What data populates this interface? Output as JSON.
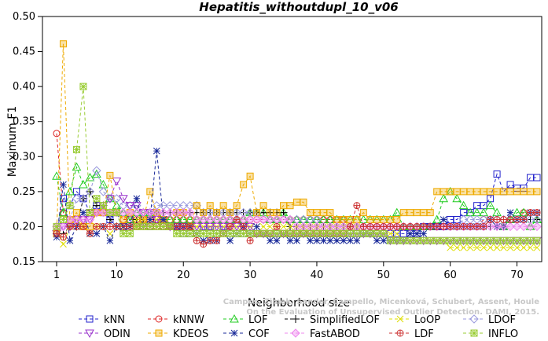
{
  "chart_data": {
    "type": "line",
    "title": "Hepatitis_withoutdupl_10_v06",
    "xlabel": "Neighborhood size",
    "ylabel": "Maximum F1",
    "xlim": [
      1,
      73
    ],
    "ylim": [
      0.15,
      0.5
    ],
    "xticks": [
      1,
      10,
      20,
      30,
      40,
      50,
      60,
      70
    ],
    "yticks": [
      0.15,
      0.2,
      0.25,
      0.3,
      0.35,
      0.4,
      0.45,
      0.5
    ],
    "grid": false,
    "legend_position": "bottom",
    "watermark": [
      "Campos, Zimek, Sander, Campello, Micenková, Schubert, Assent, Houle",
      "On the Evaluation of Unsupervised Outlier Detection. DAMI, 2015."
    ],
    "series": [
      {
        "name": "kNN",
        "color": "#2222cc",
        "marker": "square",
        "values": [
          0.19,
          0.24,
          0.23,
          0.25,
          0.24,
          0.22,
          0.23,
          0.22,
          0.21,
          0.22,
          0.2,
          0.21,
          0.2,
          0.21,
          0.2,
          0.21,
          0.2,
          0.2,
          0.2,
          0.19,
          0.19,
          0.19,
          0.2,
          0.2,
          0.19,
          0.2,
          0.19,
          0.19,
          0.19,
          0.19,
          0.19,
          0.19,
          0.19,
          0.19,
          0.19,
          0.19,
          0.19,
          0.19,
          0.19,
          0.19,
          0.19,
          0.19,
          0.19,
          0.19,
          0.19,
          0.19,
          0.19,
          0.19,
          0.19,
          0.19,
          0.19,
          0.19,
          0.19,
          0.19,
          0.19,
          0.2,
          0.2,
          0.2,
          0.2,
          0.21,
          0.21,
          0.22,
          0.22,
          0.23,
          0.23,
          0.24,
          0.275,
          0.25,
          0.26,
          0.255,
          0.255,
          0.27,
          0.27
        ]
      },
      {
        "name": "kNNW",
        "color": "#dd2222",
        "marker": "circle",
        "values": [
          0.333,
          0.22,
          0.21,
          0.21,
          0.21,
          0.22,
          0.22,
          0.22,
          0.22,
          0.22,
          0.21,
          0.21,
          0.21,
          0.21,
          0.21,
          0.21,
          0.21,
          0.21,
          0.21,
          0.21,
          0.21,
          0.21,
          0.21,
          0.21,
          0.21,
          0.21,
          0.21,
          0.21,
          0.21,
          0.21,
          0.21,
          0.21,
          0.21,
          0.21,
          0.21,
          0.21,
          0.21,
          0.21,
          0.21,
          0.21,
          0.21,
          0.21,
          0.21,
          0.21,
          0.2,
          0.2,
          0.2,
          0.2,
          0.2,
          0.2,
          0.2,
          0.2,
          0.2,
          0.2,
          0.2,
          0.2,
          0.2,
          0.2,
          0.2,
          0.2,
          0.2,
          0.2,
          0.2,
          0.2,
          0.21,
          0.21,
          0.21,
          0.21,
          0.21,
          0.21,
          0.22,
          0.22,
          0.22
        ]
      },
      {
        "name": "LOF",
        "color": "#22cc22",
        "marker": "triangle-up",
        "values": [
          0.272,
          0.22,
          0.25,
          0.285,
          0.26,
          0.27,
          0.275,
          0.26,
          0.24,
          0.23,
          0.22,
          0.21,
          0.22,
          0.22,
          0.22,
          0.22,
          0.21,
          0.21,
          0.21,
          0.21,
          0.21,
          0.21,
          0.21,
          0.21,
          0.21,
          0.21,
          0.21,
          0.21,
          0.21,
          0.22,
          0.22,
          0.22,
          0.21,
          0.21,
          0.22,
          0.21,
          0.21,
          0.21,
          0.21,
          0.21,
          0.21,
          0.21,
          0.21,
          0.21,
          0.21,
          0.21,
          0.21,
          0.21,
          0.21,
          0.21,
          0.21,
          0.22,
          0.2,
          0.2,
          0.2,
          0.2,
          0.2,
          0.21,
          0.24,
          0.25,
          0.24,
          0.23,
          0.22,
          0.22,
          0.22,
          0.23,
          0.22,
          0.2,
          0.21,
          0.22,
          0.22,
          0.2,
          0.21
        ]
      },
      {
        "name": "SimplifiedLOF",
        "color": "#000000",
        "marker": "plus",
        "values": [
          0.19,
          0.19,
          0.2,
          0.2,
          0.24,
          0.25,
          0.23,
          0.23,
          0.21,
          0.2,
          0.2,
          0.2,
          0.21,
          0.21,
          0.21,
          0.22,
          0.22,
          0.22,
          0.22,
          0.22,
          0.22,
          0.22,
          0.22,
          0.22,
          0.22,
          0.22,
          0.22,
          0.22,
          0.22,
          0.22,
          0.22,
          0.22,
          0.22,
          0.22,
          0.22,
          0.2,
          0.2,
          0.2,
          0.2,
          0.2,
          0.2,
          0.2,
          0.2,
          0.2,
          0.2,
          0.2,
          0.2,
          0.2,
          0.2,
          0.2,
          0.2,
          0.2,
          0.2,
          0.2,
          0.2,
          0.2,
          0.2,
          0.2,
          0.2,
          0.2,
          0.2,
          0.2,
          0.2,
          0.2,
          0.2,
          0.2,
          0.2,
          0.2,
          0.21,
          0.21,
          0.21,
          0.21,
          0.21
        ]
      },
      {
        "name": "LoOP",
        "color": "#dddd00",
        "marker": "x",
        "values": [
          0.2,
          0.175,
          0.2,
          0.21,
          0.2,
          0.19,
          0.2,
          0.2,
          0.19,
          0.2,
          0.2,
          0.2,
          0.21,
          0.21,
          0.21,
          0.21,
          0.21,
          0.2,
          0.2,
          0.2,
          0.2,
          0.2,
          0.2,
          0.2,
          0.2,
          0.2,
          0.2,
          0.2,
          0.2,
          0.2,
          0.2,
          0.2,
          0.2,
          0.2,
          0.2,
          0.2,
          0.2,
          0.2,
          0.2,
          0.2,
          0.2,
          0.2,
          0.2,
          0.2,
          0.2,
          0.2,
          0.19,
          0.19,
          0.19,
          0.19,
          0.19,
          0.19,
          0.18,
          0.18,
          0.18,
          0.18,
          0.18,
          0.18,
          0.18,
          0.17,
          0.17,
          0.17,
          0.17,
          0.17,
          0.17,
          0.17,
          0.17,
          0.17,
          0.17,
          0.17,
          0.17,
          0.17,
          0.17
        ]
      },
      {
        "name": "LDOF",
        "color": "#9999dd",
        "marker": "diamond",
        "values": [
          0.2,
          0.2,
          0.21,
          0.24,
          0.24,
          0.25,
          0.28,
          0.25,
          0.24,
          0.24,
          0.23,
          0.23,
          0.23,
          0.22,
          0.22,
          0.23,
          0.23,
          0.23,
          0.23,
          0.23,
          0.23,
          0.23,
          0.22,
          0.22,
          0.22,
          0.22,
          0.22,
          0.22,
          0.22,
          0.22,
          0.22,
          0.21,
          0.21,
          0.21,
          0.21,
          0.21,
          0.21,
          0.21,
          0.21,
          0.21,
          0.2,
          0.2,
          0.2,
          0.2,
          0.2,
          0.2,
          0.2,
          0.2,
          0.2,
          0.2,
          0.2,
          0.2,
          0.2,
          0.2,
          0.2,
          0.2,
          0.2,
          0.2,
          0.2,
          0.2,
          0.2,
          0.21,
          0.21,
          0.21,
          0.21,
          0.21,
          0.21,
          0.21,
          0.21,
          0.21,
          0.21,
          0.21,
          0.21
        ]
      },
      {
        "name": "ODIN",
        "color": "#9933cc",
        "marker": "triangle-down",
        "values": [
          0.19,
          0.2,
          0.2,
          0.21,
          0.21,
          0.21,
          0.22,
          0.23,
          0.24,
          0.265,
          0.24,
          0.23,
          0.23,
          0.22,
          0.22,
          0.21,
          0.21,
          0.2,
          0.2,
          0.2,
          0.2,
          0.2,
          0.2,
          0.2,
          0.2,
          0.2,
          0.2,
          0.2,
          0.2,
          0.2,
          0.19,
          0.19,
          0.19,
          0.19,
          0.19,
          0.19,
          0.19,
          0.19,
          0.19,
          0.19,
          0.19,
          0.19,
          0.19,
          0.19,
          0.19,
          0.19,
          0.19,
          0.19,
          0.19,
          0.19,
          0.18,
          0.18,
          0.18,
          0.18,
          0.18,
          0.18,
          0.18,
          0.18,
          0.18,
          0.18,
          0.18,
          0.18,
          0.18,
          0.18,
          0.18,
          0.18,
          0.18,
          0.18,
          0.18,
          0.18,
          0.18,
          0.18,
          0.18
        ]
      },
      {
        "name": "KDEOS",
        "color": "#eeaa00",
        "marker": "square-filled",
        "values": [
          0.19,
          0.461,
          0.21,
          0.22,
          0.2,
          0.2,
          0.22,
          0.22,
          0.273,
          0.22,
          0.21,
          0.22,
          0.2,
          0.21,
          0.25,
          0.22,
          0.21,
          0.2,
          0.22,
          0.22,
          0.2,
          0.23,
          0.22,
          0.23,
          0.22,
          0.23,
          0.22,
          0.23,
          0.26,
          0.272,
          0.22,
          0.23,
          0.22,
          0.22,
          0.23,
          0.23,
          0.235,
          0.235,
          0.22,
          0.22,
          0.22,
          0.22,
          0.21,
          0.21,
          0.21,
          0.21,
          0.22,
          0.21,
          0.21,
          0.21,
          0.21,
          0.21,
          0.22,
          0.22,
          0.22,
          0.22,
          0.22,
          0.25,
          0.25,
          0.25,
          0.25,
          0.25,
          0.25,
          0.25,
          0.25,
          0.25,
          0.25,
          0.25,
          0.25,
          0.25,
          0.25,
          0.25,
          0.25
        ]
      },
      {
        "name": "COF",
        "color": "#1a2a99",
        "marker": "star",
        "values": [
          0.185,
          0.26,
          0.18,
          0.2,
          0.22,
          0.19,
          0.19,
          0.2,
          0.18,
          0.2,
          0.2,
          0.2,
          0.24,
          0.2,
          0.21,
          0.308,
          0.21,
          0.2,
          0.2,
          0.2,
          0.2,
          0.19,
          0.18,
          0.18,
          0.18,
          0.19,
          0.18,
          0.19,
          0.2,
          0.19,
          0.2,
          0.19,
          0.18,
          0.18,
          0.19,
          0.18,
          0.18,
          0.19,
          0.18,
          0.18,
          0.18,
          0.18,
          0.18,
          0.18,
          0.18,
          0.18,
          0.19,
          0.19,
          0.18,
          0.18,
          0.18,
          0.18,
          0.18,
          0.19,
          0.19,
          0.19,
          0.2,
          0.2,
          0.21,
          0.2,
          0.2,
          0.2,
          0.2,
          0.2,
          0.2,
          0.21,
          0.2,
          0.2,
          0.22,
          0.21,
          0.21,
          0.22,
          0.22
        ]
      },
      {
        "name": "FastABOD",
        "color": "#ee88ee",
        "marker": "diamond-filled",
        "values": [
          0.2,
          0.2,
          0.21,
          0.21,
          0.21,
          0.21,
          0.22,
          0.22,
          0.22,
          0.22,
          0.22,
          0.22,
          0.22,
          0.22,
          0.22,
          0.22,
          0.22,
          0.22,
          0.22,
          0.22,
          0.22,
          0.21,
          0.21,
          0.21,
          0.21,
          0.21,
          0.21,
          0.21,
          0.21,
          0.21,
          0.21,
          0.21,
          0.21,
          0.21,
          0.21,
          0.21,
          0.2,
          0.2,
          0.2,
          0.2,
          0.2,
          0.2,
          0.2,
          0.2,
          0.2,
          0.2,
          0.2,
          0.2,
          0.2,
          0.2,
          0.2,
          0.2,
          0.2,
          0.2,
          0.2,
          0.2,
          0.2,
          0.2,
          0.2,
          0.2,
          0.2,
          0.2,
          0.2,
          0.2,
          0.2,
          0.2,
          0.2,
          0.2,
          0.2,
          0.2,
          0.2,
          0.2,
          0.2
        ]
      },
      {
        "name": "LDF",
        "color": "#cc3333",
        "marker": "circle-plus",
        "values": [
          0.19,
          0.185,
          0.2,
          0.2,
          0.2,
          0.19,
          0.2,
          0.2,
          0.2,
          0.2,
          0.2,
          0.2,
          0.2,
          0.2,
          0.2,
          0.2,
          0.2,
          0.2,
          0.2,
          0.2,
          0.2,
          0.18,
          0.175,
          0.18,
          0.18,
          0.19,
          0.2,
          0.21,
          0.2,
          0.18,
          0.19,
          0.19,
          0.19,
          0.2,
          0.19,
          0.19,
          0.19,
          0.19,
          0.19,
          0.19,
          0.19,
          0.19,
          0.19,
          0.19,
          0.2,
          0.23,
          0.2,
          0.2,
          0.2,
          0.2,
          0.2,
          0.2,
          0.2,
          0.2,
          0.2,
          0.2,
          0.2,
          0.2,
          0.2,
          0.2,
          0.2,
          0.2,
          0.2,
          0.2,
          0.2,
          0.21,
          0.21,
          0.21,
          0.21,
          0.21,
          0.21,
          0.22,
          0.22
        ]
      },
      {
        "name": "INFLO",
        "color": "#99cc33",
        "marker": "star-box",
        "values": [
          0.2,
          0.21,
          0.23,
          0.31,
          0.4,
          0.22,
          0.24,
          0.23,
          0.22,
          0.22,
          0.19,
          0.19,
          0.2,
          0.2,
          0.2,
          0.2,
          0.2,
          0.2,
          0.19,
          0.19,
          0.19,
          0.19,
          0.19,
          0.19,
          0.19,
          0.19,
          0.19,
          0.19,
          0.19,
          0.19,
          0.19,
          0.19,
          0.19,
          0.19,
          0.19,
          0.19,
          0.19,
          0.19,
          0.19,
          0.19,
          0.19,
          0.19,
          0.19,
          0.19,
          0.19,
          0.19,
          0.19,
          0.19,
          0.19,
          0.19,
          0.18,
          0.18,
          0.18,
          0.18,
          0.18,
          0.18,
          0.18,
          0.18,
          0.18,
          0.18,
          0.18,
          0.18,
          0.18,
          0.18,
          0.18,
          0.18,
          0.18,
          0.18,
          0.18,
          0.18,
          0.18,
          0.18,
          0.18
        ]
      }
    ]
  }
}
